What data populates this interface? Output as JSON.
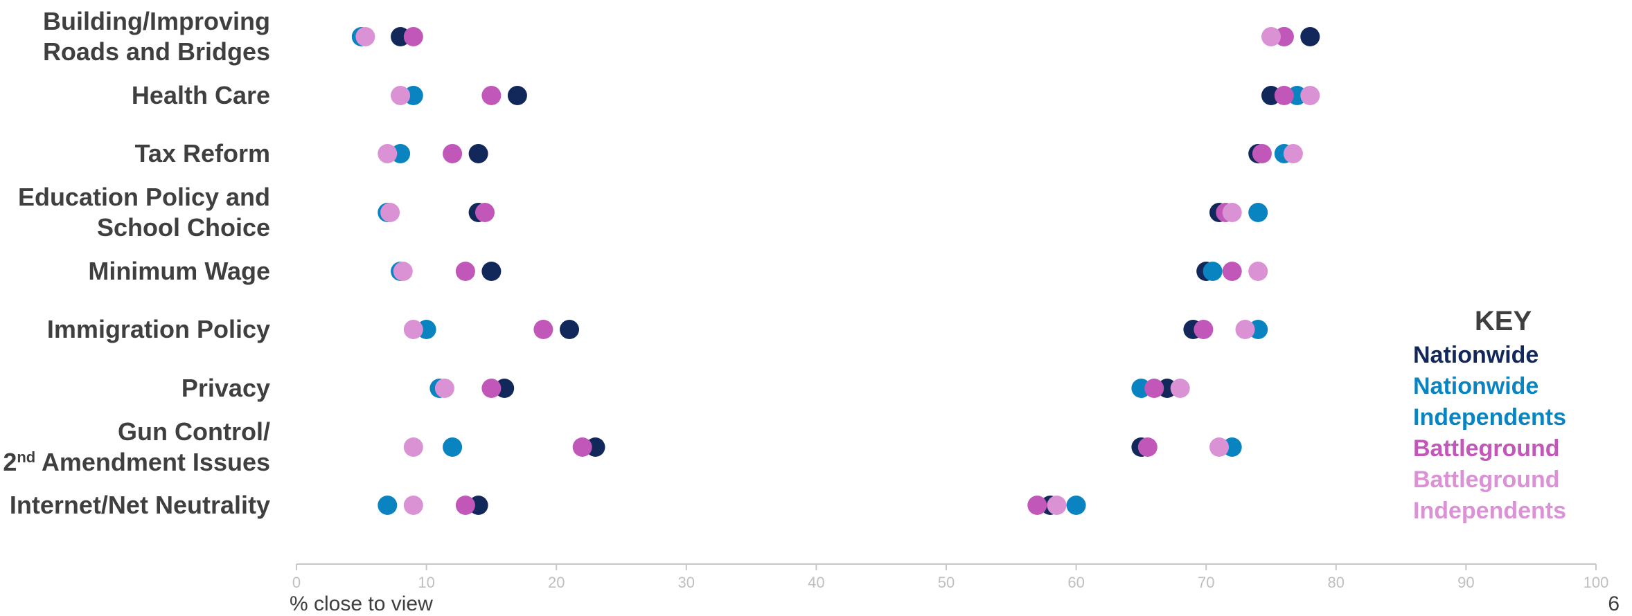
{
  "chart_data": {
    "type": "scatter",
    "xlabel": "% close to view",
    "xlim": [
      0,
      100
    ],
    "xticks": [
      0,
      10,
      20,
      30,
      40,
      50,
      60,
      70,
      80,
      90,
      100
    ],
    "categories": [
      "Building/Improving\nRoads and Bridges",
      "Health Care",
      "Tax Reform",
      "Education Policy and\nSchool Choice",
      "Minimum Wage",
      "Immigration Policy",
      "Privacy",
      "Gun Control/\n2nd Amendment Issues",
      "Internet/Net Neutrality"
    ],
    "series": [
      {
        "name": "Nationwide",
        "color": "#12285a",
        "left": [
          8,
          17,
          14,
          14,
          15,
          21,
          16,
          23,
          14
        ],
        "right": [
          78,
          75,
          74,
          71,
          70,
          69,
          67,
          65,
          58
        ]
      },
      {
        "name": "Nationwide Independents",
        "color": "#0a84c1",
        "left": [
          5,
          9,
          8,
          7,
          8,
          10,
          11,
          12,
          7
        ],
        "right": [
          76,
          77,
          76,
          74,
          70.5,
          74,
          65,
          72,
          60
        ]
      },
      {
        "name": "Battleground",
        "color": "#c157b8",
        "left": [
          9,
          15,
          12,
          14.5,
          13,
          19,
          15,
          22,
          13
        ],
        "right": [
          76,
          76,
          74.3,
          71.5,
          72,
          69.8,
          66,
          65.5,
          57
        ]
      },
      {
        "name": "Battleground Independents",
        "color": "#da92d5",
        "left": [
          5.3,
          8,
          7,
          7.2,
          8.2,
          9,
          11.4,
          9,
          9
        ],
        "right": [
          75,
          78,
          76.7,
          72,
          74,
          73,
          68,
          71,
          58.5
        ]
      }
    ],
    "legend_position": "right",
    "grid": false
  },
  "key": {
    "title": "KEY",
    "items": [
      {
        "label": "Nationwide",
        "color": "#12285a"
      },
      {
        "label": "Nationwide Independents",
        "color": "#0a84c1"
      },
      {
        "label": "Battleground",
        "color": "#c157b8"
      },
      {
        "label": "Battleground Independents",
        "color": "#da92d5"
      }
    ]
  },
  "page_number": "6"
}
